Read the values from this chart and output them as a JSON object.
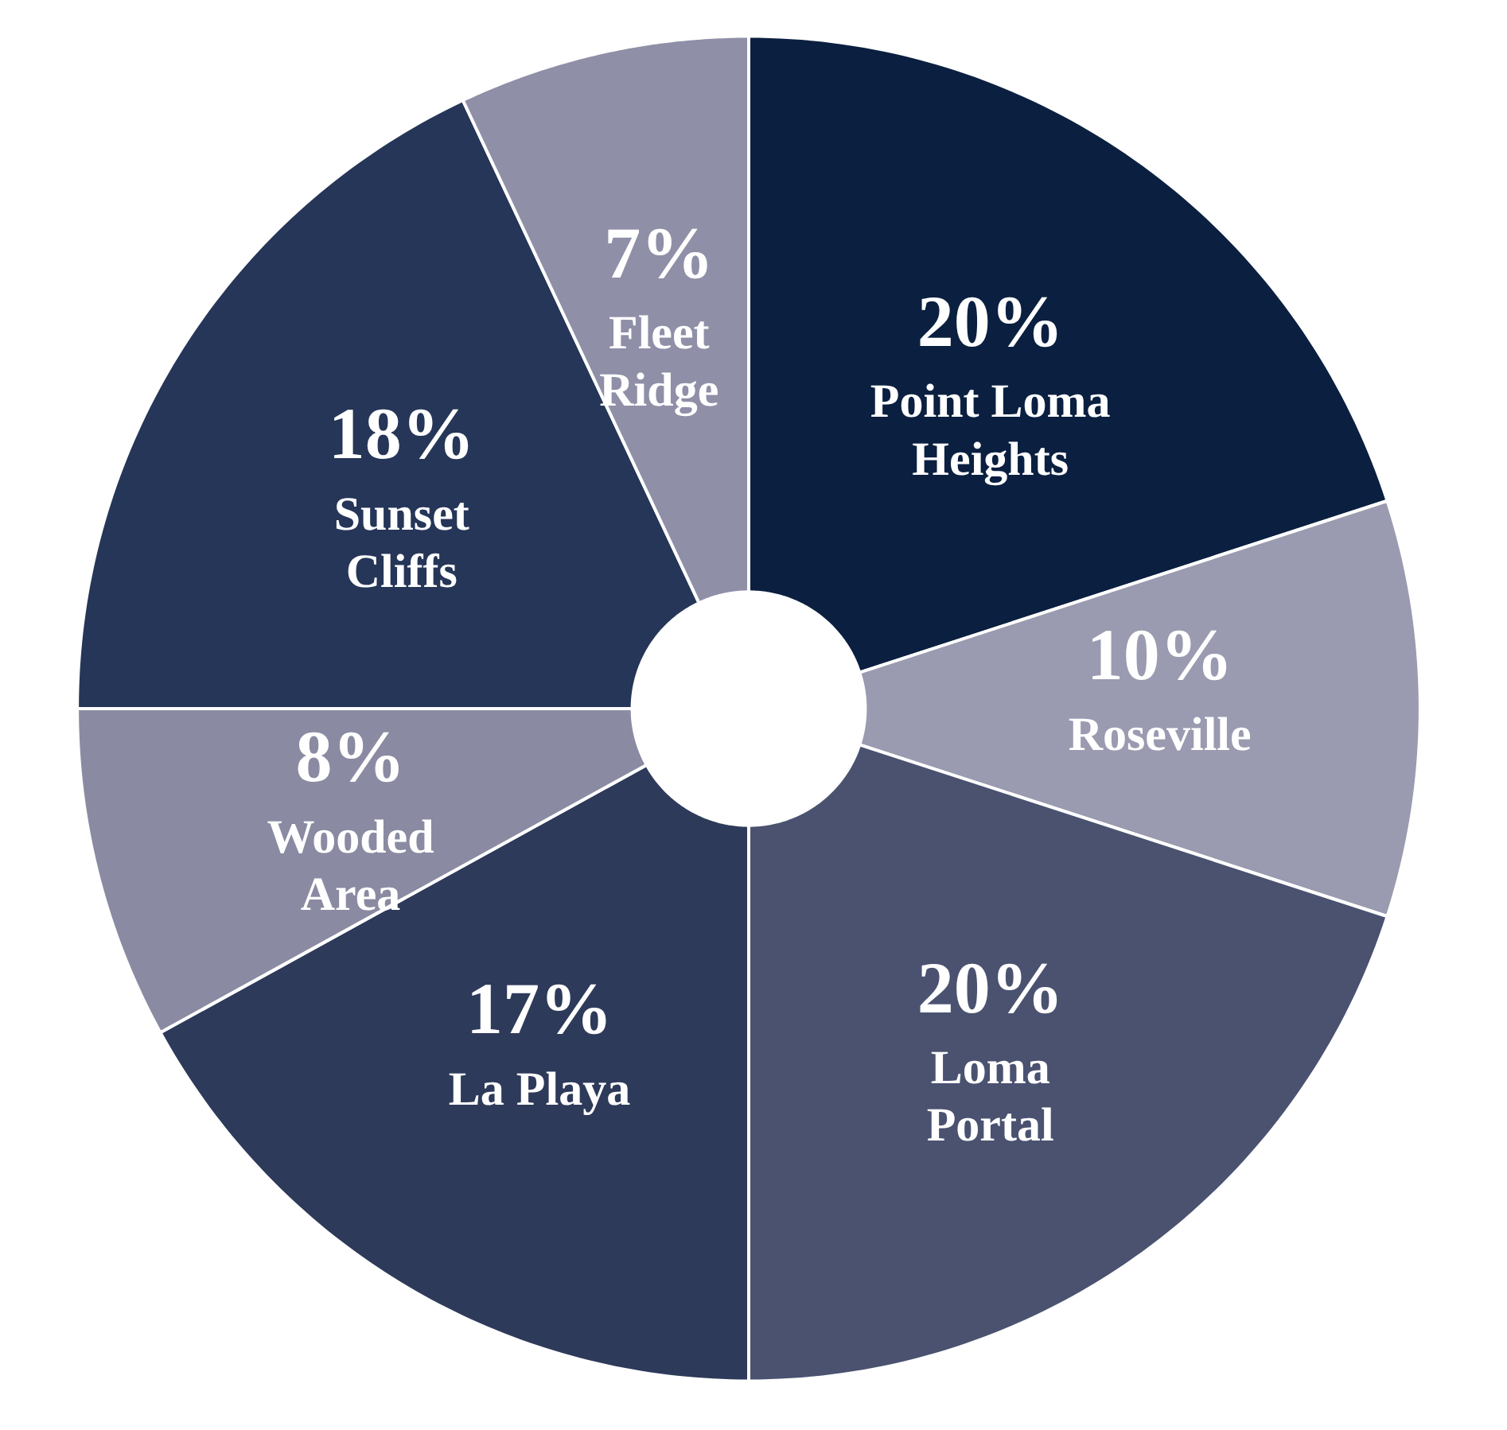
{
  "chart_data": {
    "type": "donut",
    "categories": [
      "Point Loma Heights",
      "Roseville",
      "Loma Portal",
      "La Playa",
      "Wooded Area",
      "Sunset Cliffs",
      "Fleet Ridge"
    ],
    "values": [
      20,
      10,
      20,
      17,
      8,
      18,
      7
    ],
    "value_labels": [
      "20%",
      "10%",
      "20%",
      "17%",
      "8%",
      "18%",
      "7%"
    ],
    "colors": [
      "#0b2040",
      "#9a9ab0",
      "#4a5270",
      "#2e3a5a",
      "#8a8aa2",
      "#263658",
      "#8f8fa8"
    ]
  }
}
